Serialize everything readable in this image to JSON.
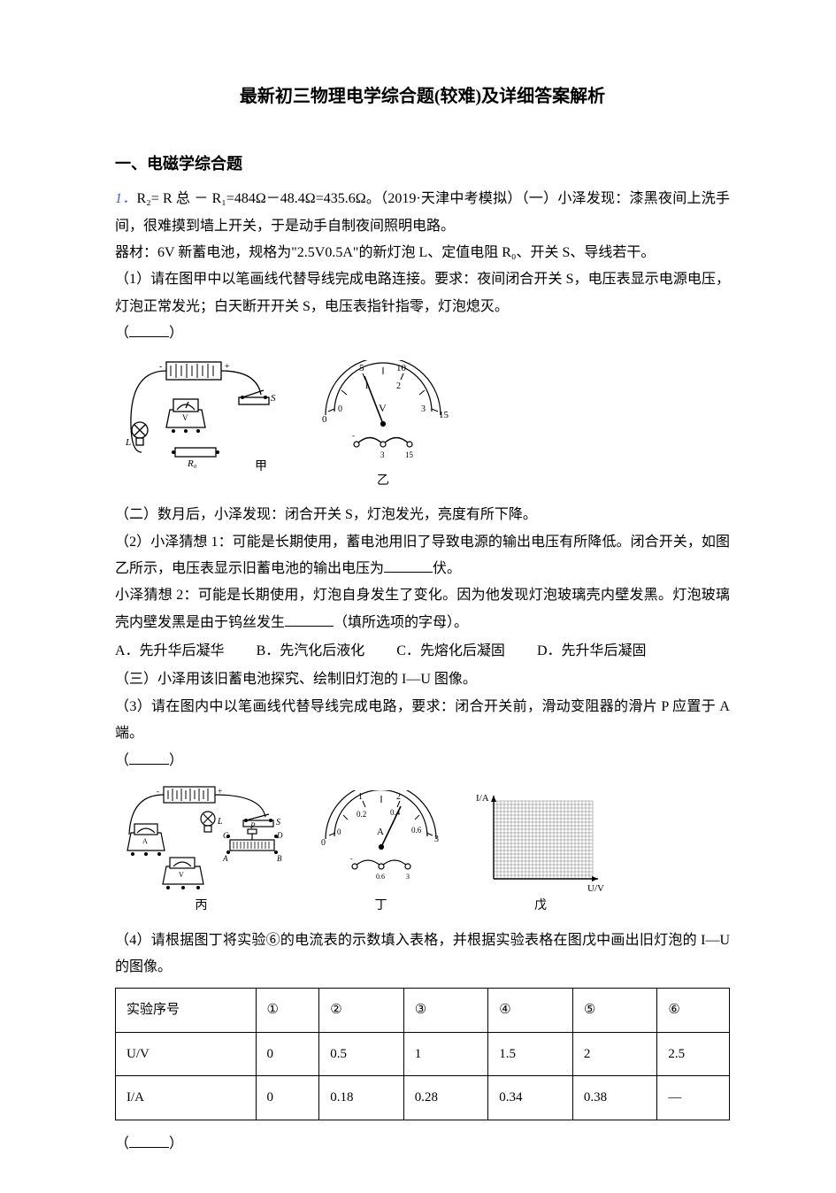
{
  "title": "最新初三物理电学综合题(较难)及详细答案解析",
  "section_header": "一、电磁学综合题",
  "q1_prefix": "1．",
  "q1_formula": "R₂= R 总 － R₁=484Ω－48.4Ω=435.6Ω",
  "q1_ref": "。（2019·天津中考模拟）（一）小泽发现：漆黑夜间上洗手间，很难摸到墙上开关，于是动手自制夜间照明电路。",
  "apparatus": "器材：6V 新蓄电池，规格为\"2.5V0.5A\"的新灯泡 L、定值电阻 R₀、开关 S、导线若干。",
  "p1": "（1）请在图甲中以笔画线代替导线完成电路连接。要求：夜间闭合开关 S，电压表显示电源电压，灯泡正常发光；白天断开开关 S，电压表指针指零，灯泡熄灭。",
  "paren_open": "（",
  "paren_close": "）",
  "fig_jia": "甲",
  "fig_yi": "乙",
  "fig_bing": "丙",
  "fig_ding": "丁",
  "fig_wu": "戊",
  "part2_intro": "（二）数月后，小泽发现：闭合开关 S，灯泡发光，亮度有所下降。",
  "p2a": "（2）小泽猜想 1：可能是长期使用，蓄电池用旧了导致电源的输出电压有所降低。闭合开关，如图乙所示，电压表显示旧蓄电池的输出电压为",
  "p2a_unit": "伏。",
  "p2b": "小泽猜想 2：可能是长期使用，灯泡自身发生了变化。因为他发现灯泡玻璃壳内壁发黑。灯泡玻璃壳内壁发黑是由于钨丝发生",
  "p2b_tail": "（填所选项的字母）。",
  "optA": "A．先升华后凝华",
  "optB": "B．先汽化后液化",
  "optC": "C．先熔化后凝固",
  "optD": "D．先升华后凝固",
  "part3_intro": "（三）小泽用该旧蓄电池探究、绘制旧灯泡的 I—U 图像。",
  "p3": "（3）请在图内中以笔画线代替导线完成电路，要求：闭合开关前，滑动变阻器的滑片 P 应置于 A 端。",
  "p4": "（4）请根据图丁将实验⑥的电流表的示数填入表格，并根据实验表格在图戊中画出旧灯泡的 I—U 的图像。",
  "table": {
    "headers": [
      "实验序号",
      "①",
      "②",
      "③",
      "④",
      "⑤",
      "⑥"
    ],
    "rows": [
      [
        "U/V",
        "0",
        "0.5",
        "1",
        "1.5",
        "2",
        "2.5"
      ],
      [
        "I/A",
        "0",
        "0.18",
        "0.28",
        "0.34",
        "0.38",
        "—"
      ]
    ],
    "col_count": 7,
    "border_color": "#000000"
  },
  "voltmeter_yi": {
    "scale_outer": [
      0,
      5,
      10,
      15
    ],
    "scale_inner": [
      0,
      1,
      2,
      3
    ],
    "unit": "V",
    "range_small": [
      0,
      3
    ],
    "range_large": [
      0,
      15
    ]
  },
  "ammeter_ding": {
    "scale_outer": [
      0,
      1,
      2,
      3
    ],
    "scale_inner": [
      0,
      0.2,
      0.4,
      0.6
    ],
    "unit": "A",
    "range_small": [
      0,
      0.6
    ],
    "range_large": [
      0,
      3
    ]
  },
  "graph_wu": {
    "x_label": "U/V",
    "y_label": "I/A",
    "grid": true,
    "grid_color": "#555555",
    "bg_color": "#ffffff"
  },
  "colors": {
    "text": "#000000",
    "accent": "#3e5dcf",
    "background": "#ffffff",
    "svg_stroke": "#000000"
  },
  "fonts": {
    "body_family": "SimSun",
    "body_size_pt": 12,
    "title_size_pt": 15,
    "title_weight": "bold"
  }
}
